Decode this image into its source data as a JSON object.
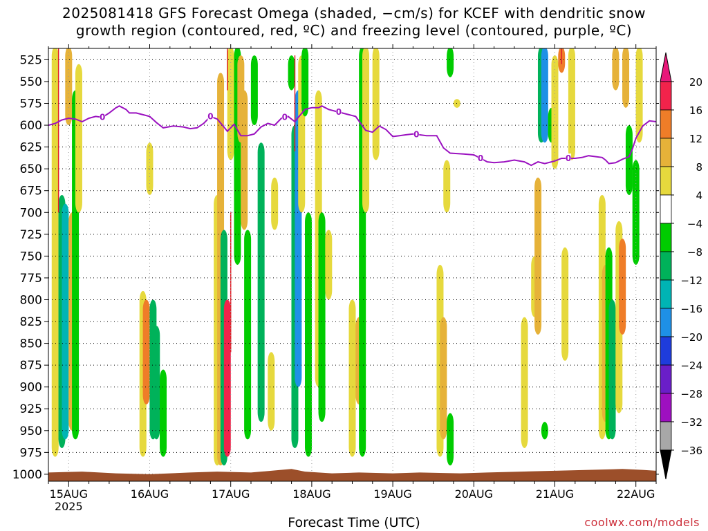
{
  "chart_data": {
    "type": "heatmap",
    "title_line1": "2025081418 GFS Forecast Omega (shaded, −cm/s) for KCEF with dendritic snow",
    "title_line2": "growth region (contoured, red, ºC) and freezing level (contoured, purple, ºC)",
    "xlabel": "Forecast Time (UTC)",
    "credit": "coolwx.com/models",
    "x_ticks": [
      "15AUG",
      "16AUG",
      "17AUG",
      "18AUG",
      "19AUG",
      "20AUG",
      "21AUG",
      "22AUG"
    ],
    "x_first_tick_year": "2025",
    "x_range_hours": [
      -6,
      174
    ],
    "y_ticks": [
      525,
      550,
      575,
      600,
      625,
      650,
      675,
      700,
      725,
      750,
      775,
      800,
      825,
      850,
      875,
      900,
      925,
      950,
      975,
      1000
    ],
    "y_range_hpa": [
      512,
      1008
    ],
    "colorbar": {
      "labels": [
        "20",
        "16",
        "12",
        "8",
        "4",
        "−4",
        "−8",
        "−12",
        "−16",
        "−20",
        "−24",
        "−28",
        "−32",
        "−36"
      ],
      "bins_top_to_bottom": [
        {
          "color": "#f2234b"
        },
        {
          "color": "#ef7d28"
        },
        {
          "color": "#e6b239"
        },
        {
          "color": "#e6d93d"
        },
        {
          "color": "#ffffff"
        },
        {
          "color": "#00cc00"
        },
        {
          "color": "#00b25a"
        },
        {
          "color": "#00b4b4"
        },
        {
          "color": "#1e90e6"
        },
        {
          "color": "#1e3cdc"
        },
        {
          "color": "#6a1ec8"
        },
        {
          "color": "#9e10c0"
        },
        {
          "color": "#a8a8a8"
        }
      ],
      "top_arrow_color": "#e8187a",
      "bottom_arrow_color": "#000000"
    },
    "freezing_level_label": "0",
    "freezing_level_color": "#9b12c0",
    "ground_color": "#9c4f2a",
    "freezing_level_hpa": [
      [
        -6,
        600
      ],
      [
        -4,
        598
      ],
      [
        -2,
        594
      ],
      [
        0,
        592
      ],
      [
        2,
        593
      ],
      [
        4,
        596
      ],
      [
        6,
        592
      ],
      [
        8,
        590
      ],
      [
        10,
        591
      ],
      [
        12,
        586
      ],
      [
        14,
        580
      ],
      [
        15,
        578
      ],
      [
        17,
        582
      ],
      [
        18,
        586
      ],
      [
        20,
        586
      ],
      [
        22,
        588
      ],
      [
        24,
        590
      ],
      [
        26,
        597
      ],
      [
        28,
        603
      ],
      [
        31,
        601
      ],
      [
        34,
        602
      ],
      [
        36,
        604
      ],
      [
        38,
        603
      ],
      [
        40,
        598
      ],
      [
        42,
        590
      ],
      [
        44,
        593
      ],
      [
        46,
        602
      ],
      [
        47,
        607
      ],
      [
        49,
        599
      ],
      [
        51,
        612
      ],
      [
        53,
        612
      ],
      [
        55,
        610
      ],
      [
        57,
        602
      ],
      [
        59,
        598
      ],
      [
        61,
        600
      ],
      [
        63,
        592
      ],
      [
        65,
        590
      ],
      [
        67,
        596
      ],
      [
        68,
        591
      ],
      [
        70,
        582
      ],
      [
        72,
        580
      ],
      [
        74,
        580
      ],
      [
        75,
        578
      ],
      [
        77,
        582
      ],
      [
        79,
        584
      ],
      [
        81,
        586
      ],
      [
        83,
        588
      ],
      [
        85,
        590
      ],
      [
        88,
        606
      ],
      [
        90,
        608
      ],
      [
        92,
        601
      ],
      [
        94,
        605
      ],
      [
        96,
        613
      ],
      [
        98,
        612
      ],
      [
        100,
        611
      ],
      [
        102,
        610
      ],
      [
        106,
        612
      ],
      [
        109,
        612
      ],
      [
        111,
        626
      ],
      [
        113,
        632
      ],
      [
        117,
        633
      ],
      [
        120,
        634
      ],
      [
        122,
        638
      ],
      [
        124,
        642
      ],
      [
        126,
        643
      ],
      [
        129,
        642
      ],
      [
        132,
        640
      ],
      [
        135,
        642
      ],
      [
        137,
        646
      ],
      [
        139,
        642
      ],
      [
        141,
        644
      ],
      [
        144,
        641
      ],
      [
        146,
        638
      ],
      [
        150,
        638
      ],
      [
        152,
        637
      ],
      [
        154,
        635
      ],
      [
        156,
        636
      ],
      [
        158,
        637
      ],
      [
        159,
        640
      ],
      [
        160,
        644
      ],
      [
        162,
        643
      ],
      [
        164,
        639
      ],
      [
        166,
        636
      ],
      [
        167,
        627
      ],
      [
        168,
        615
      ],
      [
        170,
        601
      ],
      [
        172,
        595
      ],
      [
        174,
        596
      ]
    ],
    "freezing_level_label_hours": [
      10,
      42,
      64,
      80,
      103,
      122,
      148
    ],
    "omega_regions": [
      {
        "hour": -4,
        "p_top": 510,
        "p_bot": 980,
        "value": 6
      },
      {
        "hour": -2,
        "p_top": 680,
        "p_bot": 970,
        "value": -8
      },
      {
        "hour": -1,
        "p_top": 690,
        "p_bot": 960,
        "value": -14
      },
      {
        "hour": 0,
        "p_top": 510,
        "p_bot": 600,
        "value": 8
      },
      {
        "hour": 1,
        "p_top": 700,
        "p_bot": 950,
        "value": 10
      },
      {
        "hour": 2,
        "p_top": 560,
        "p_bot": 960,
        "value": -6
      },
      {
        "hour": 3,
        "p_top": 530,
        "p_bot": 700,
        "value": 6
      },
      {
        "hour": 22,
        "p_top": 790,
        "p_bot": 980,
        "value": 6
      },
      {
        "hour": 23,
        "p_top": 800,
        "p_bot": 920,
        "value": 12
      },
      {
        "hour": 24,
        "p_top": 620,
        "p_bot": 680,
        "value": 6
      },
      {
        "hour": 25,
        "p_top": 800,
        "p_bot": 960,
        "value": -10
      },
      {
        "hour": 26,
        "p_top": 830,
        "p_bot": 960,
        "value": -8
      },
      {
        "hour": 28,
        "p_top": 880,
        "p_bot": 980,
        "value": -6
      },
      {
        "hour": 44,
        "p_top": 680,
        "p_bot": 990,
        "value": 6
      },
      {
        "hour": 45,
        "p_top": 540,
        "p_bot": 990,
        "value": 8
      },
      {
        "hour": 46,
        "p_top": 720,
        "p_bot": 990,
        "value": -8
      },
      {
        "hour": 47,
        "p_top": 800,
        "p_bot": 980,
        "value": 18
      },
      {
        "hour": 48,
        "p_top": 510,
        "p_bot": 640,
        "value": 6
      },
      {
        "hour": 50,
        "p_top": 510,
        "p_bot": 760,
        "value": -6
      },
      {
        "hour": 51,
        "p_top": 520,
        "p_bot": 620,
        "value": 10
      },
      {
        "hour": 52,
        "p_top": 560,
        "p_bot": 720,
        "value": 8
      },
      {
        "hour": 53,
        "p_top": 720,
        "p_bot": 960,
        "value": -6
      },
      {
        "hour": 55,
        "p_top": 520,
        "p_bot": 600,
        "value": -6
      },
      {
        "hour": 57,
        "p_top": 620,
        "p_bot": 940,
        "value": -8
      },
      {
        "hour": 60,
        "p_top": 860,
        "p_bot": 950,
        "value": 6
      },
      {
        "hour": 61,
        "p_top": 660,
        "p_bot": 720,
        "value": 6
      },
      {
        "hour": 66,
        "p_top": 520,
        "p_bot": 560,
        "value": -6
      },
      {
        "hour": 67,
        "p_top": 600,
        "p_bot": 970,
        "value": -10
      },
      {
        "hour": 68,
        "p_top": 560,
        "p_bot": 900,
        "value": -16
      },
      {
        "hour": 69,
        "p_top": 520,
        "p_bot": 700,
        "value": 6
      },
      {
        "hour": 70,
        "p_top": 510,
        "p_bot": 590,
        "value": -6
      },
      {
        "hour": 71,
        "p_top": 700,
        "p_bot": 980,
        "value": -6
      },
      {
        "hour": 74,
        "p_top": 560,
        "p_bot": 900,
        "value": 6
      },
      {
        "hour": 75,
        "p_top": 700,
        "p_bot": 940,
        "value": -6
      },
      {
        "hour": 77,
        "p_top": 720,
        "p_bot": 800,
        "value": 6
      },
      {
        "hour": 84,
        "p_top": 800,
        "p_bot": 980,
        "value": 6
      },
      {
        "hour": 86,
        "p_top": 820,
        "p_bot": 920,
        "value": 8
      },
      {
        "hour": 87,
        "p_top": 510,
        "p_bot": 980,
        "value": -6
      },
      {
        "hour": 88,
        "p_top": 510,
        "p_bot": 700,
        "value": 6
      },
      {
        "hour": 91,
        "p_top": 510,
        "p_bot": 640,
        "value": 6
      },
      {
        "hour": 110,
        "p_top": 760,
        "p_bot": 980,
        "value": 6
      },
      {
        "hour": 111,
        "p_top": 820,
        "p_bot": 960,
        "value": 10
      },
      {
        "hour": 112,
        "p_top": 640,
        "p_bot": 700,
        "value": 6
      },
      {
        "hour": 113,
        "p_top": 930,
        "p_bot": 990,
        "value": -6
      },
      {
        "hour": 113,
        "p_top": 510,
        "p_bot": 545,
        "value": -6
      },
      {
        "hour": 115,
        "p_top": 570,
        "p_bot": 580,
        "value": 6
      },
      {
        "hour": 135,
        "p_top": 820,
        "p_bot": 970,
        "value": 6
      },
      {
        "hour": 138,
        "p_top": 750,
        "p_bot": 820,
        "value": 6
      },
      {
        "hour": 139,
        "p_top": 660,
        "p_bot": 840,
        "value": 10
      },
      {
        "hour": 140,
        "p_top": 510,
        "p_bot": 620,
        "value": -10
      },
      {
        "hour": 141,
        "p_top": 510,
        "p_bot": 620,
        "value": -16
      },
      {
        "hour": 141,
        "p_top": 940,
        "p_bot": 960,
        "value": -6
      },
      {
        "hour": 143,
        "p_top": 580,
        "p_bot": 620,
        "value": -6
      },
      {
        "hour": 144,
        "p_top": 520,
        "p_bot": 650,
        "value": 6
      },
      {
        "hour": 146,
        "p_top": 510,
        "p_bot": 540,
        "value": 12
      },
      {
        "hour": 147,
        "p_top": 740,
        "p_bot": 870,
        "value": 6
      },
      {
        "hour": 149,
        "p_top": 510,
        "p_bot": 640,
        "value": 6
      },
      {
        "hour": 158,
        "p_top": 680,
        "p_bot": 960,
        "value": 6
      },
      {
        "hour": 159,
        "p_top": 760,
        "p_bot": 940,
        "value": 10
      },
      {
        "hour": 160,
        "p_top": 740,
        "p_bot": 960,
        "value": -6
      },
      {
        "hour": 161,
        "p_top": 800,
        "p_bot": 960,
        "value": -10
      },
      {
        "hour": 162,
        "p_top": 510,
        "p_bot": 560,
        "value": 8
      },
      {
        "hour": 163,
        "p_top": 710,
        "p_bot": 930,
        "value": 6
      },
      {
        "hour": 164,
        "p_top": 730,
        "p_bot": 840,
        "value": 12
      },
      {
        "hour": 165,
        "p_top": 510,
        "p_bot": 580,
        "value": 10
      },
      {
        "hour": 166,
        "p_top": 600,
        "p_bot": 680,
        "value": -6
      },
      {
        "hour": 168,
        "p_top": 640,
        "p_bot": 760,
        "value": -6
      },
      {
        "hour": 169,
        "p_top": 510,
        "p_bot": 620,
        "value": 6
      }
    ],
    "dgz_regions": [
      {
        "hour": -3,
        "p_top": 510,
        "p_bot": 700
      },
      {
        "hour": 47,
        "p_top": 510,
        "p_bot": 560
      },
      {
        "hour": 48,
        "p_top": 700,
        "p_bot": 860
      },
      {
        "hour": 67,
        "p_top": 520,
        "p_bot": 630
      },
      {
        "hour": 146,
        "p_top": 510,
        "p_bot": 530
      }
    ],
    "ground_pressure_hpa": [
      [
        -6,
        998
      ],
      [
        4,
        997
      ],
      [
        14,
        999
      ],
      [
        24,
        1000
      ],
      [
        30,
        999
      ],
      [
        36,
        998
      ],
      [
        44,
        997
      ],
      [
        54,
        998
      ],
      [
        60,
        996
      ],
      [
        66,
        994
      ],
      [
        70,
        997
      ],
      [
        78,
        999
      ],
      [
        86,
        998
      ],
      [
        96,
        999
      ],
      [
        104,
        998
      ],
      [
        116,
        999
      ],
      [
        124,
        998
      ],
      [
        134,
        997
      ],
      [
        144,
        996
      ],
      [
        154,
        995
      ],
      [
        164,
        994
      ],
      [
        170,
        995
      ],
      [
        174,
        996
      ]
    ]
  }
}
